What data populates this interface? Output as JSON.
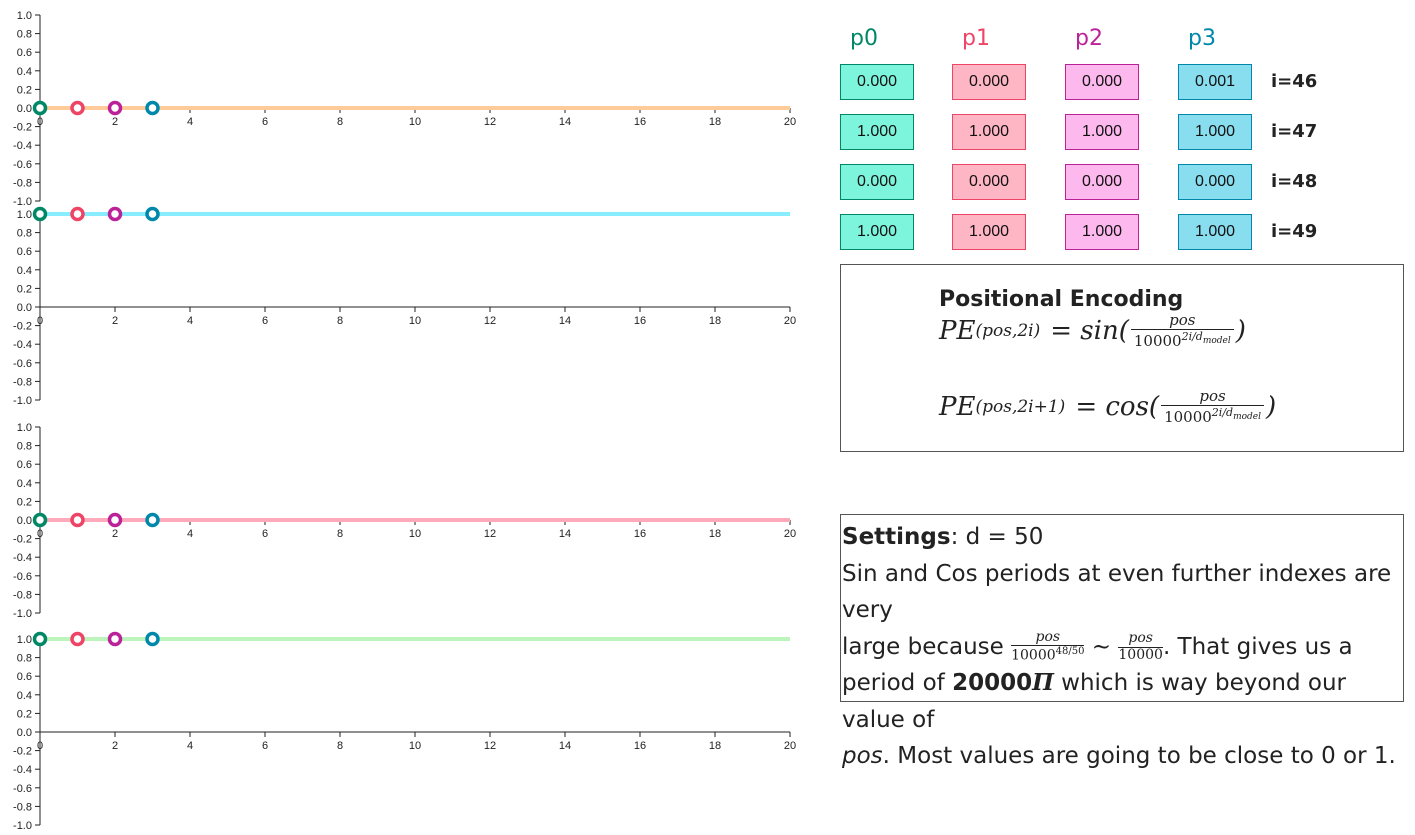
{
  "chart_data": [
    {
      "type": "line",
      "x_range": [
        0,
        20
      ],
      "ylim": [
        -1,
        1
      ],
      "line_value": 0.0,
      "line_color": "#FFCC99",
      "points": [
        {
          "x": 0,
          "y": 0.0
        },
        {
          "x": 1,
          "y": 0.0
        },
        {
          "x": 2,
          "y": 0.0
        },
        {
          "x": 3,
          "y": 0.0
        }
      ],
      "xticks": [
        0,
        2,
        4,
        6,
        8,
        10,
        12,
        14,
        16,
        18,
        20
      ],
      "yticks": [
        "1.0",
        "0.8",
        "0.6",
        "0.4",
        "0.2",
        "0.0",
        "-0.2",
        "-0.4",
        "-0.6",
        "-0.8",
        "-1.0"
      ]
    },
    {
      "type": "line",
      "x_range": [
        0,
        20
      ],
      "ylim": [
        -1,
        1
      ],
      "line_value": 1.0,
      "line_color": "#88EEFF",
      "points": [
        {
          "x": 0,
          "y": 1.0
        },
        {
          "x": 1,
          "y": 1.0
        },
        {
          "x": 2,
          "y": 1.0
        },
        {
          "x": 3,
          "y": 1.0
        }
      ],
      "xticks": [
        0,
        2,
        4,
        6,
        8,
        10,
        12,
        14,
        16,
        18,
        20
      ],
      "yticks": [
        "1.0",
        "0.8",
        "0.6",
        "0.4",
        "0.2",
        "0.0",
        "-0.2",
        "-0.4",
        "-0.6",
        "-0.8",
        "-1.0"
      ]
    },
    {
      "type": "line",
      "x_range": [
        0,
        20
      ],
      "ylim": [
        -1,
        1
      ],
      "line_value": 0.0,
      "line_color": "#FFAABB",
      "points": [
        {
          "x": 0,
          "y": 0.0
        },
        {
          "x": 1,
          "y": 0.0
        },
        {
          "x": 2,
          "y": 0.0
        },
        {
          "x": 3,
          "y": 0.0
        }
      ],
      "xticks": [
        0,
        2,
        4,
        6,
        8,
        10,
        12,
        14,
        16,
        18,
        20
      ],
      "yticks": [
        "1.0",
        "0.8",
        "0.6",
        "0.4",
        "0.2",
        "0.0",
        "-0.2",
        "-0.4",
        "-0.6",
        "-0.8",
        "-1.0"
      ]
    },
    {
      "type": "line",
      "x_range": [
        0,
        20
      ],
      "ylim": [
        -1,
        1
      ],
      "line_value": 1.0,
      "line_color": "#BBF5BB",
      "points": [
        {
          "x": 0,
          "y": 1.0
        },
        {
          "x": 1,
          "y": 1.0
        },
        {
          "x": 2,
          "y": 1.0
        },
        {
          "x": 3,
          "y": 1.0
        }
      ],
      "xticks": [
        0,
        2,
        4,
        6,
        8,
        10,
        12,
        14,
        16,
        18,
        20
      ],
      "yticks": [
        "1.0",
        "0.8",
        "0.6",
        "0.4",
        "0.2",
        "0.0",
        "-0.2",
        "-0.4",
        "-0.6",
        "-0.8",
        "-1.0"
      ]
    }
  ],
  "point_colors": [
    "#008866",
    "#EE4466",
    "#BB2299",
    "#0088AA"
  ],
  "table": {
    "headers": [
      "p0",
      "p1",
      "p2",
      "p3"
    ],
    "header_colors": [
      "#008866",
      "#EE4466",
      "#BB2299",
      "#0088AA"
    ],
    "cell_bg": [
      "#7DF5DD",
      "#FFB6C4",
      "#FDB8EE",
      "#88DDEE"
    ],
    "cell_border": [
      "#008866",
      "#EE4466",
      "#BB2299",
      "#0088AA"
    ],
    "rows": [
      {
        "label": "i=46",
        "values": [
          "0.000",
          "0.000",
          "0.000",
          "0.001"
        ]
      },
      {
        "label": "i=47",
        "values": [
          "1.000",
          "1.000",
          "1.000",
          "1.000"
        ]
      },
      {
        "label": "i=48",
        "values": [
          "0.000",
          "0.000",
          "0.000",
          "0.000"
        ]
      },
      {
        "label": "i=49",
        "values": [
          "1.000",
          "1.000",
          "1.000",
          "1.000"
        ]
      }
    ]
  },
  "pe_box": {
    "title": "Positional Encoding",
    "f1_lhs": "PE",
    "f1_sub": "(pos,2i)",
    "f1_fn": "= sin(",
    "f1_num": "pos",
    "f1_den": "10000",
    "f1_exp": "2i/d",
    "f1_exp_sub": "model",
    "f1_close": ")",
    "f2_lhs": "PE",
    "f2_sub": "(pos,2i+1)",
    "f2_fn": "= cos(",
    "f2_num": "pos",
    "f2_den": "10000",
    "f2_exp": "2i/d",
    "f2_exp_sub": "model",
    "f2_close": ")"
  },
  "settings": {
    "label": "Settings",
    "value": ": d = 50",
    "line1": "Sin and Cos periods at even further indexes are very",
    "line2a": "large because ",
    "frac1_num": "pos",
    "frac1_den": "10000",
    "frac1_exp": "48/50",
    "sim": " ∼ ",
    "frac2_num": "pos",
    "frac2_den": "10000",
    "line2b": ". That gives us a",
    "line3a": "period of ",
    "period": "20000",
    "pi": "Π",
    "line3b": " which is way beyond our value of",
    "line4a": "pos",
    "line4b": ". Most values are going to be close to 0 or 1."
  }
}
